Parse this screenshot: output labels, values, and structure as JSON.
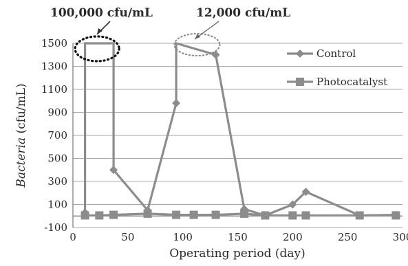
{
  "chart_data": {
    "type": "line",
    "xlabel": "Operating period (day)",
    "ylabel": "Bacteria (cfu/mL)",
    "ylabel_parts": {
      "italic": "Bacteria",
      "rest": " (cfu/mL)"
    },
    "xlim": [
      0,
      300
    ],
    "ylim": [
      -100,
      1500
    ],
    "x_ticks": [
      0,
      50,
      100,
      150,
      200,
      250,
      300
    ],
    "y_ticks": [
      -100,
      100,
      300,
      500,
      700,
      900,
      1100,
      1300,
      1500
    ],
    "grid": "horizontal",
    "legend_position": "top-right",
    "annotations": [
      {
        "text": "100,000 cfu/mL",
        "x": 22,
        "y": 1500,
        "style": "dotted-black-ellipse"
      },
      {
        "text": "12,000 cfu/mL",
        "x": 113,
        "y": 1500,
        "style": "dotted-gray-ellipse"
      }
    ],
    "series": [
      {
        "name": "Control",
        "marker": "diamond",
        "color": "#8c8c8c",
        "points": [
          {
            "x": 11,
            "y": 30
          },
          {
            "x": 11,
            "y": 1500,
            "off_scale": true
          },
          {
            "x": 37,
            "y": 1500,
            "off_scale": true
          },
          {
            "x": 37,
            "y": 400
          },
          {
            "x": 68,
            "y": 50
          },
          {
            "x": 94,
            "y": 980
          },
          {
            "x": 94,
            "y": 1500,
            "off_scale": true
          },
          {
            "x": 130,
            "y": 1400
          },
          {
            "x": 156,
            "y": 60
          },
          {
            "x": 175,
            "y": 5
          },
          {
            "x": 200,
            "y": 100
          },
          {
            "x": 212,
            "y": 210
          },
          {
            "x": 261,
            "y": 5
          },
          {
            "x": 294,
            "y": 10
          }
        ]
      },
      {
        "name": "Photocatalyst",
        "marker": "square",
        "color": "#8c8c8c",
        "points": [
          {
            "x": 11,
            "y": 5
          },
          {
            "x": 24,
            "y": 5
          },
          {
            "x": 37,
            "y": 10
          },
          {
            "x": 68,
            "y": 20
          },
          {
            "x": 94,
            "y": 10
          },
          {
            "x": 110,
            "y": 10
          },
          {
            "x": 130,
            "y": 10
          },
          {
            "x": 156,
            "y": 20
          },
          {
            "x": 175,
            "y": 5
          },
          {
            "x": 200,
            "y": 5
          },
          {
            "x": 212,
            "y": 5
          },
          {
            "x": 261,
            "y": 5
          },
          {
            "x": 294,
            "y": 5
          }
        ]
      }
    ]
  }
}
